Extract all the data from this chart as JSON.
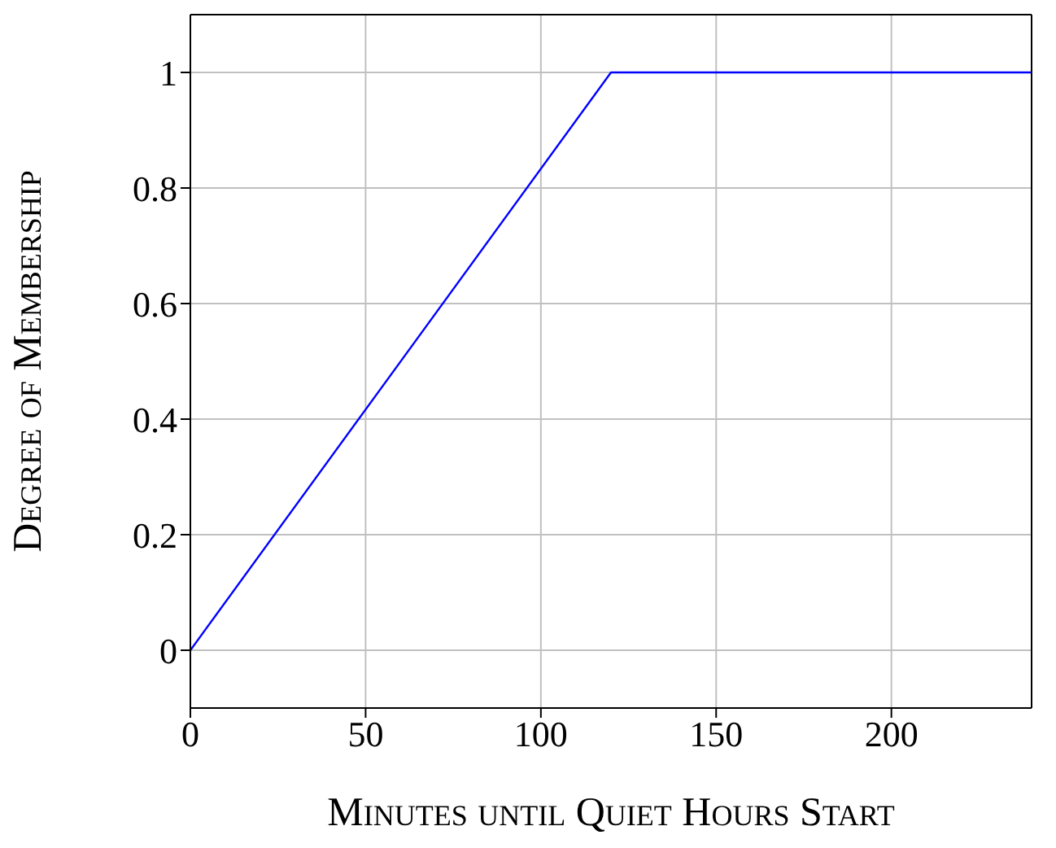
{
  "chart_data": {
    "type": "line",
    "xlabel": "Minutes until Quiet Hours Start",
    "ylabel": "Degree of Membership",
    "x": [
      0,
      120,
      240
    ],
    "series": [
      {
        "color": "#0000ff",
        "values": [
          0,
          1,
          1
        ]
      }
    ],
    "xlim": [
      0,
      240
    ],
    "xticks": [
      0,
      50,
      100,
      150,
      200
    ],
    "ylim": [
      -0.1,
      1.1
    ],
    "yticks": [
      0,
      0.2,
      0.4,
      0.6,
      0.8,
      1
    ],
    "grid": true,
    "legend": false,
    "marker": "none",
    "line_style": "solid"
  }
}
